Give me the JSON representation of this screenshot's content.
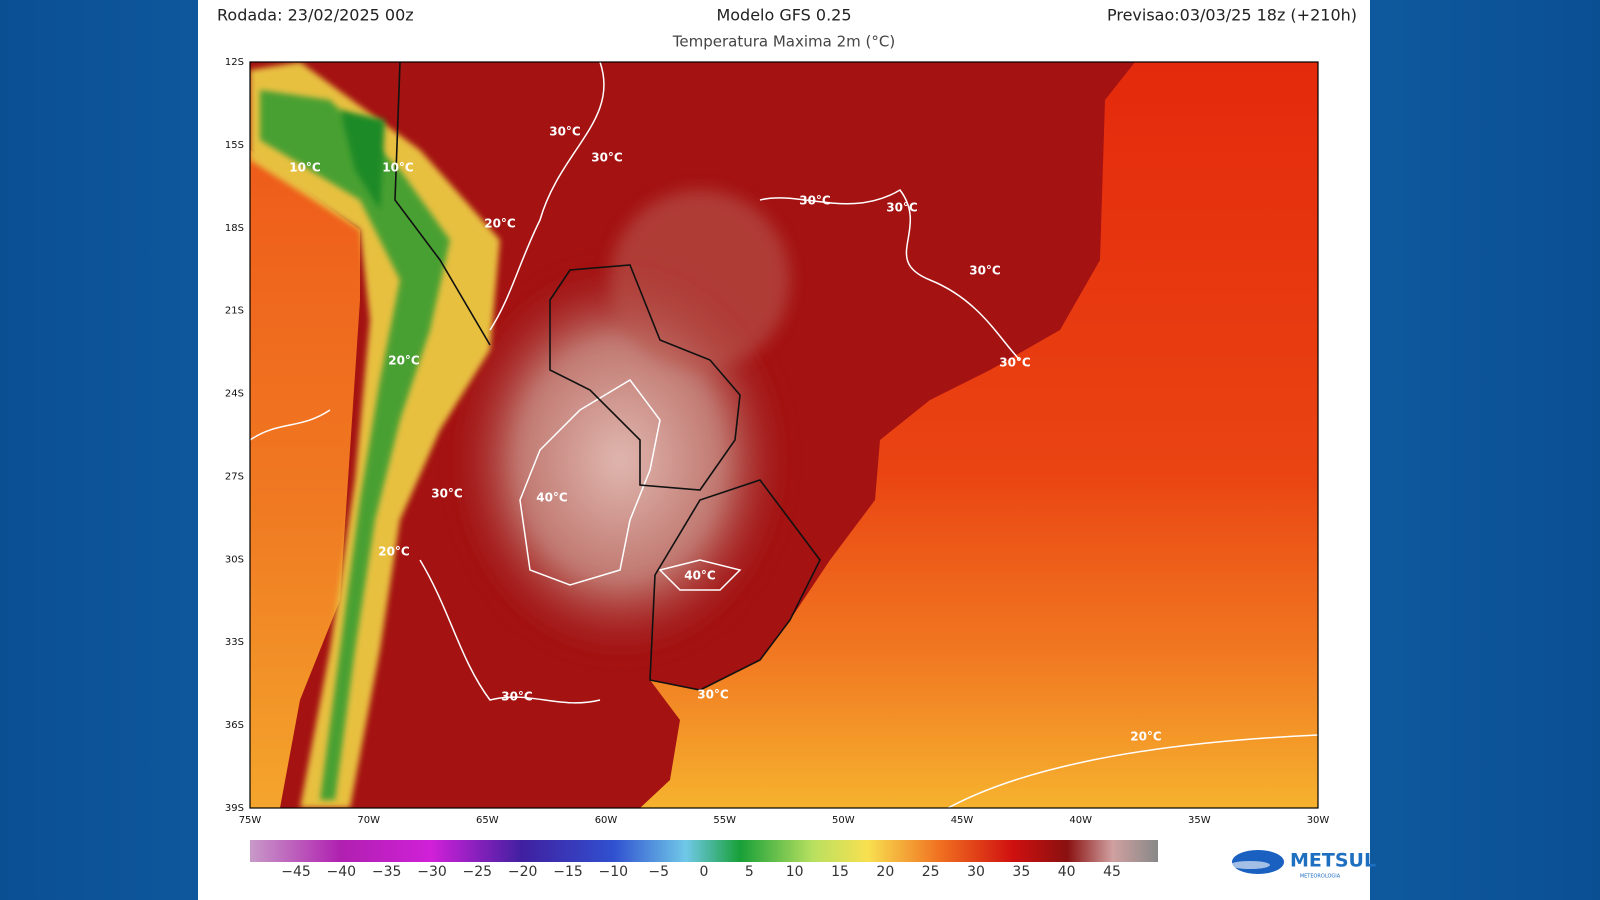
{
  "header": {
    "run": "Rodada: 23/02/2025 00z",
    "model": "Modelo GFS 0.25",
    "forecast": "Previsao:03/03/25 18z (+210h)",
    "subtitle": "Temperatura Maxima 2m (°C)"
  },
  "map": {
    "lat_ticks": [
      "12S",
      "15S",
      "18S",
      "21S",
      "24S",
      "27S",
      "30S",
      "33S",
      "36S",
      "39S"
    ],
    "lon_ticks": [
      "75W",
      "70W",
      "65W",
      "60W",
      "55W",
      "50W",
      "45W",
      "40W",
      "35W",
      "30W"
    ],
    "contour_labels": [
      "30°C",
      "30°C",
      "10°C",
      "10°C",
      "20°C",
      "30°C",
      "30°C",
      "30°C",
      "30°C",
      "20°C",
      "30°C",
      "40°C",
      "20°C",
      "40°C",
      "30°C",
      "30°C",
      "20°C"
    ]
  },
  "colorbar": {
    "labels": [
      "−45",
      "−40",
      "−35",
      "−30",
      "−25",
      "−20",
      "−15",
      "−10",
      "−5",
      "0",
      "5",
      "10",
      "15",
      "20",
      "25",
      "30",
      "35",
      "40",
      "45"
    ]
  },
  "logo": {
    "name": "METSUL",
    "tagline": "METEOROLOGIA"
  }
}
